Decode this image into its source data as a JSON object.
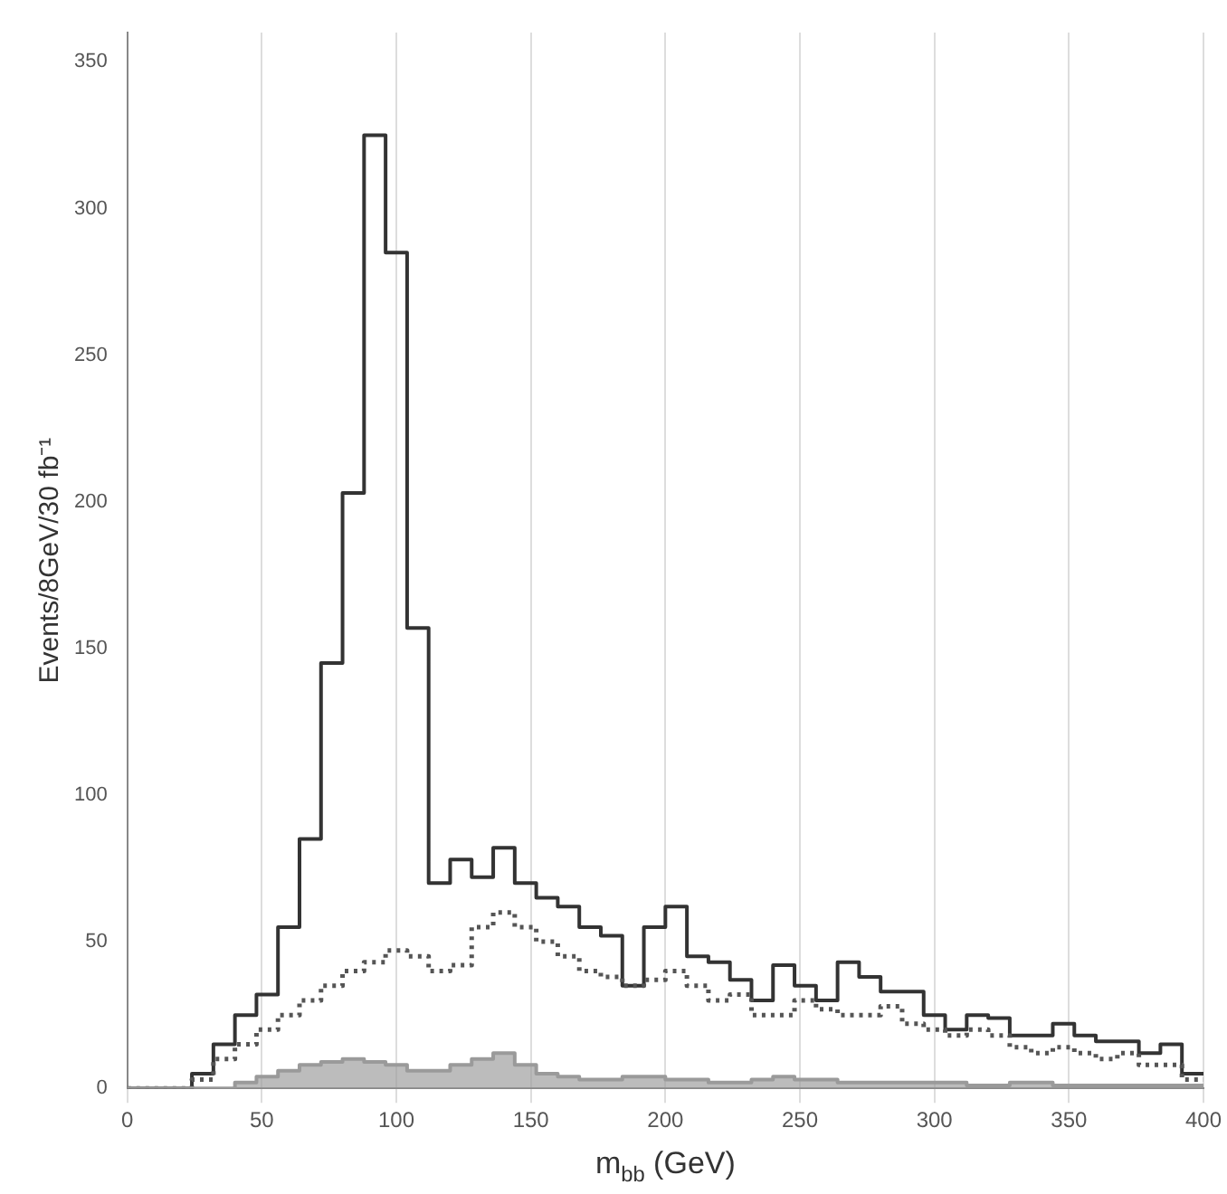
{
  "chart_data": {
    "type": "histogram",
    "xlabel": "m$_{bb}$ (GeV)",
    "ylabel": "Events/8GeV/30 fb⁻¹",
    "bins": [
      0,
      8,
      16,
      24,
      32,
      40,
      48,
      56,
      64,
      72,
      80,
      88,
      96,
      104,
      112,
      120,
      128,
      136,
      144,
      152,
      160,
      168,
      176,
      184,
      192,
      200,
      208,
      216,
      224,
      232,
      240,
      248,
      256,
      264,
      272,
      280,
      288,
      296,
      304,
      312,
      320,
      328,
      336,
      344,
      352,
      360,
      368,
      376,
      384,
      392,
      400
    ],
    "series": [
      {
        "color": "#333333",
        "line_style": "solid",
        "values": [
          0,
          0,
          0,
          5,
          15,
          25,
          32,
          55,
          85,
          145,
          203,
          325,
          285,
          157,
          70,
          78,
          72,
          82,
          70,
          65,
          62,
          55,
          52,
          35,
          55,
          62,
          45,
          43,
          37,
          30,
          42,
          35,
          30,
          43,
          38,
          33,
          33,
          25,
          20,
          25,
          24,
          18,
          18,
          22,
          18,
          16,
          16,
          12,
          15,
          5
        ]
      },
      {
        "color": "#555555",
        "line_style": "dotted",
        "values": [
          0,
          0,
          0,
          3,
          10,
          15,
          20,
          25,
          30,
          35,
          40,
          43,
          47,
          45,
          40,
          42,
          55,
          60,
          55,
          50,
          45,
          40,
          38,
          35,
          37,
          40,
          35,
          30,
          32,
          25,
          25,
          30,
          27,
          25,
          25,
          28,
          22,
          20,
          18,
          20,
          18,
          14,
          12,
          14,
          12,
          10,
          12,
          8,
          8,
          3
        ]
      },
      {
        "color": "#9a9a9a",
        "values": [
          0,
          0,
          0,
          0,
          0,
          2,
          4,
          6,
          8,
          9,
          10,
          9,
          8,
          6,
          6,
          8,
          10,
          12,
          8,
          5,
          4,
          3,
          3,
          4,
          4,
          3,
          3,
          2,
          2,
          3,
          4,
          3,
          3,
          2,
          2,
          2,
          2,
          2,
          2,
          1,
          1,
          2,
          2,
          1,
          1,
          1,
          1,
          1,
          1,
          1
        ]
      }
    ],
    "xlim": [
      0,
      400
    ],
    "xticks": [
      0,
      50,
      100,
      150,
      200,
      250,
      300,
      350,
      400
    ],
    "ylim": [
      0,
      360
    ],
    "yticks": [
      0,
      50,
      100,
      150,
      200,
      250,
      300,
      350
    ],
    "grid": "x",
    "legend": false,
    "marker": "none"
  }
}
